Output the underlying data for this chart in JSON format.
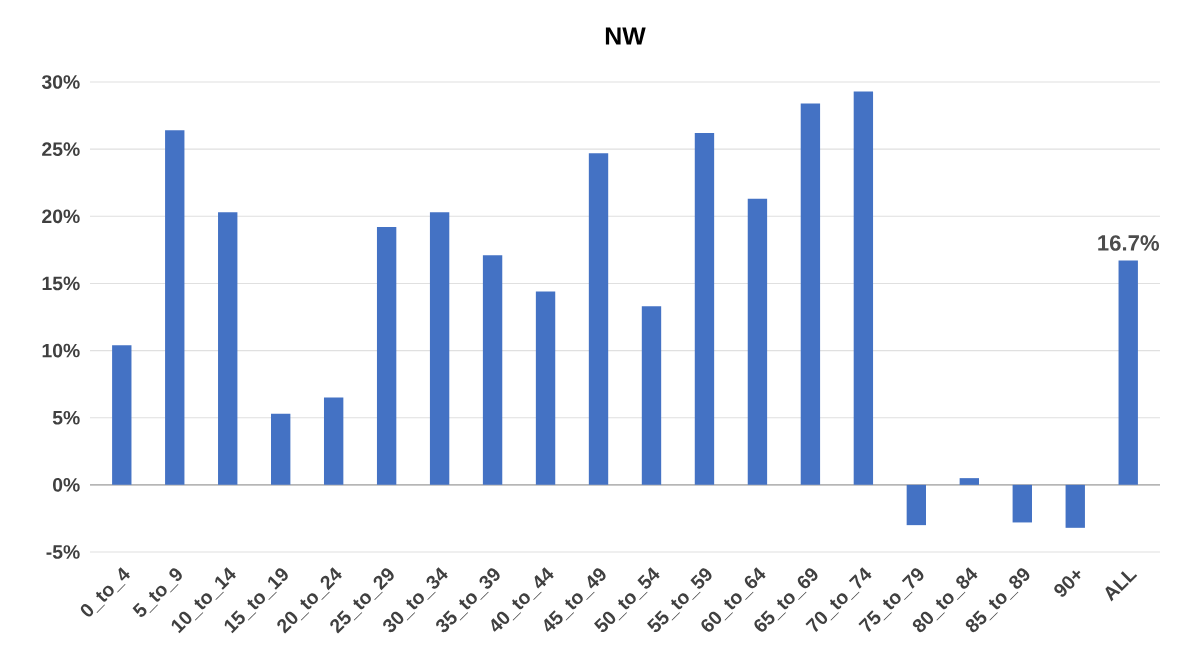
{
  "chart_data": {
    "type": "bar",
    "title": "NW",
    "categories": [
      "0_to_4",
      "5_to_9",
      "10_to_14",
      "15_to_19",
      "20_to_24",
      "25_to_29",
      "30_to_34",
      "35_to_39",
      "40_to_44",
      "45_to_49",
      "50_to_54",
      "55_to_59",
      "60_to_64",
      "65_to_69",
      "70_to_74",
      "75_to_79",
      "80_to_84",
      "85_to_89",
      "90+",
      "ALL"
    ],
    "values": [
      10.4,
      26.4,
      20.3,
      5.3,
      6.5,
      19.2,
      20.3,
      17.1,
      14.4,
      24.7,
      13.3,
      26.2,
      21.3,
      28.4,
      29.3,
      -3.0,
      0.5,
      -2.8,
      -3.2,
      16.7
    ],
    "value_labels": [
      null,
      null,
      null,
      null,
      null,
      null,
      null,
      null,
      null,
      null,
      null,
      null,
      null,
      null,
      null,
      null,
      null,
      null,
      null,
      "16.7%"
    ],
    "color": "#4472c4",
    "ylim": [
      -5,
      30
    ],
    "yticks": [
      {
        "value": -5,
        "label": "-5%"
      },
      {
        "value": 0,
        "label": "0%"
      },
      {
        "value": 5,
        "label": "5%"
      },
      {
        "value": 10,
        "label": "10%"
      },
      {
        "value": 15,
        "label": "15%"
      },
      {
        "value": 20,
        "label": "20%"
      },
      {
        "value": 25,
        "label": "25%"
      },
      {
        "value": 30,
        "label": "30%"
      }
    ],
    "grid": "y"
  }
}
